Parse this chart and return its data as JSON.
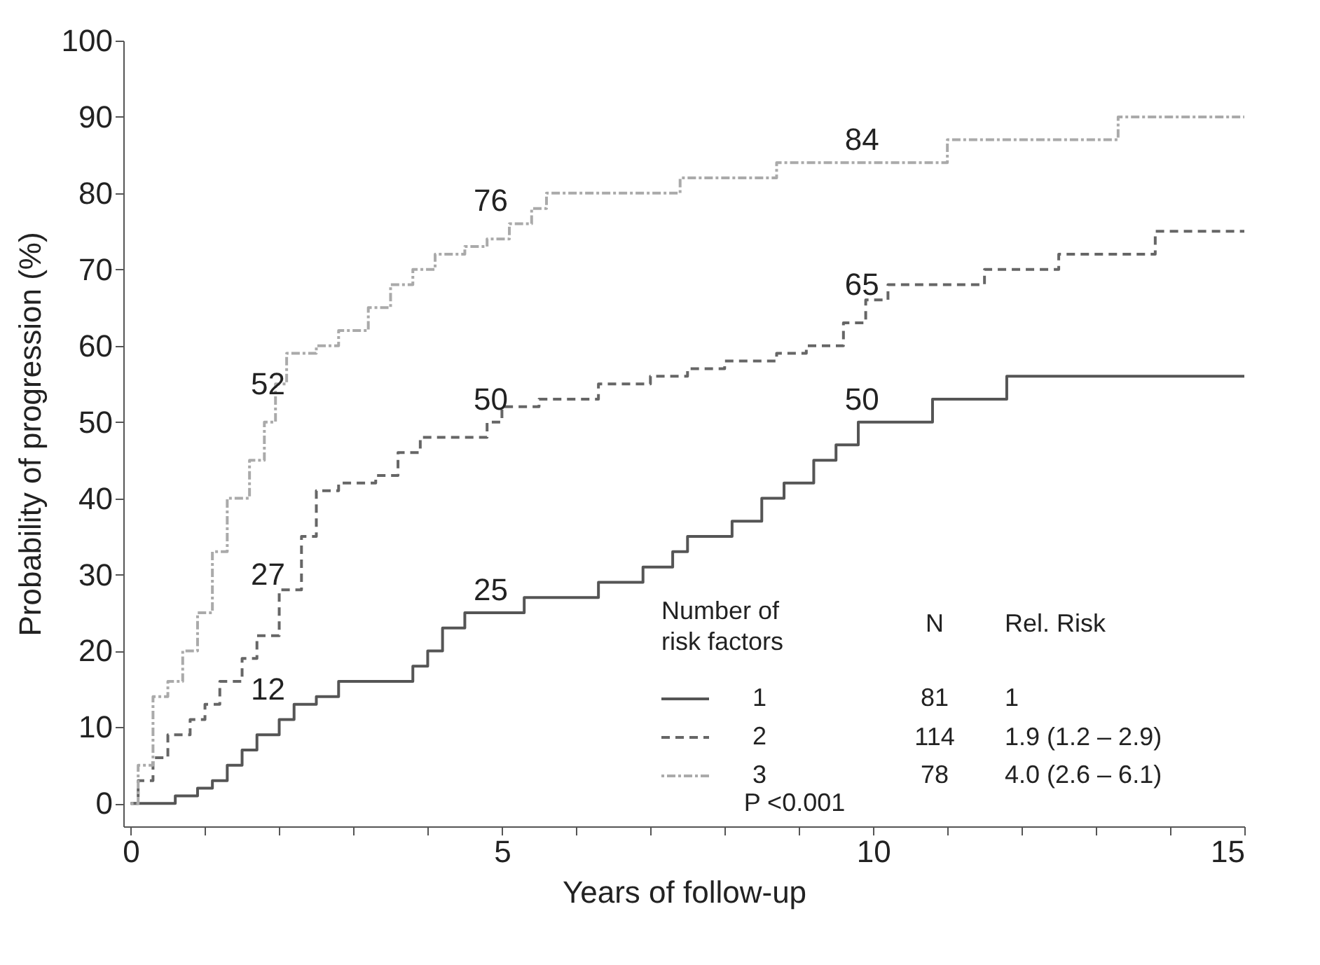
{
  "chart_data": {
    "type": "step",
    "xlabel": "Years of follow-up",
    "ylabel": "Probability of progression (%)",
    "xlim": [
      -0.1,
      15
    ],
    "ylim": [
      -3,
      100
    ],
    "xticks": [
      0,
      {
        "value": 1,
        "label": null
      },
      {
        "value": 2,
        "label": null
      },
      {
        "value": 3,
        "label": null
      },
      {
        "value": 4,
        "label": null
      },
      5,
      {
        "value": 6,
        "label": null
      },
      {
        "value": 7,
        "label": null
      },
      {
        "value": 8,
        "label": null
      },
      {
        "value": 9,
        "label": null
      },
      10,
      {
        "value": 11,
        "label": null
      },
      {
        "value": 12,
        "label": null
      },
      {
        "value": 13,
        "label": null
      },
      {
        "value": 14,
        "label": null
      },
      15
    ],
    "yticks": [
      0,
      10,
      20,
      30,
      40,
      50,
      60,
      70,
      80,
      90,
      100
    ],
    "grid": false,
    "legend": "bottom right",
    "series": [
      {
        "name": "1",
        "color": "#555555",
        "line_style": "solid",
        "x": [
          0,
          0.6,
          0.9,
          1.1,
          1.3,
          1.5,
          1.7,
          2.0,
          2.2,
          2.5,
          2.8,
          3.8,
          4.0,
          4.2,
          4.5,
          5.3,
          6.3,
          6.9,
          7.3,
          7.5,
          8.1,
          8.5,
          8.8,
          9.2,
          9.5,
          9.8,
          10.8,
          11.3,
          11.8,
          15
        ],
        "values": [
          0,
          1,
          2,
          3,
          5,
          7,
          9,
          11,
          13,
          14,
          16,
          18,
          20,
          23,
          25,
          27,
          29,
          31,
          33,
          35,
          37,
          40,
          42,
          45,
          47,
          50,
          53,
          53,
          56,
          56
        ]
      },
      {
        "name": "2",
        "color": "#666666",
        "line_style": "dashed",
        "x": [
          0,
          0.1,
          0.3,
          0.5,
          0.8,
          1.0,
          1.2,
          1.5,
          1.7,
          2.0,
          2.3,
          2.5,
          2.8,
          3.3,
          3.6,
          3.9,
          4.8,
          5.0,
          5.5,
          6.3,
          7.0,
          7.5,
          8.0,
          8.7,
          9.1,
          9.6,
          9.9,
          10.2,
          11.5,
          12.5,
          13.8,
          15
        ],
        "values": [
          0,
          3,
          6,
          9,
          11,
          13,
          16,
          19,
          22,
          28,
          35,
          41,
          42,
          43,
          46,
          48,
          50,
          52,
          53,
          55,
          56,
          57,
          58,
          59,
          60,
          63,
          66,
          68,
          70,
          72,
          75,
          75
        ]
      },
      {
        "name": "3",
        "color": "#aaaaaa",
        "line_style": "dotted",
        "x": [
          0,
          0.1,
          0.3,
          0.5,
          0.7,
          0.9,
          1.1,
          1.3,
          1.6,
          1.8,
          1.95,
          2.1,
          2.5,
          2.8,
          3.2,
          3.5,
          3.8,
          4.1,
          4.5,
          4.8,
          5.1,
          5.4,
          5.6,
          7.4,
          8.7,
          11.0,
          13.3,
          15
        ],
        "values": [
          0,
          5,
          14,
          16,
          20,
          25,
          33,
          40,
          45,
          50,
          55,
          59,
          60,
          62,
          65,
          68,
          70,
          72,
          73,
          74,
          76,
          78,
          80,
          82,
          84,
          87,
          90,
          90
        ]
      }
    ],
    "annotations": [
      {
        "text": "52",
        "x": 2,
        "y": 52
      },
      {
        "text": "76",
        "x": 5,
        "y": 76
      },
      {
        "text": "84",
        "x": 10,
        "y": 84
      },
      {
        "text": "27",
        "x": 2,
        "y": 27
      },
      {
        "text": "50",
        "x": 5,
        "y": 50
      },
      {
        "text": "65",
        "x": 10,
        "y": 65
      },
      {
        "text": "12",
        "x": 2,
        "y": 12
      },
      {
        "text": "25",
        "x": 5,
        "y": 25
      },
      {
        "text": "50",
        "x": 10,
        "y": 50
      },
      "Number of\nrisk factors",
      "N",
      "Rel. Risk",
      "81",
      "114",
      "78",
      "1",
      "1.9 (1.2 – 2.9)",
      "4.0 (2.6 – 6.1)",
      "P <0.001"
    ]
  }
}
